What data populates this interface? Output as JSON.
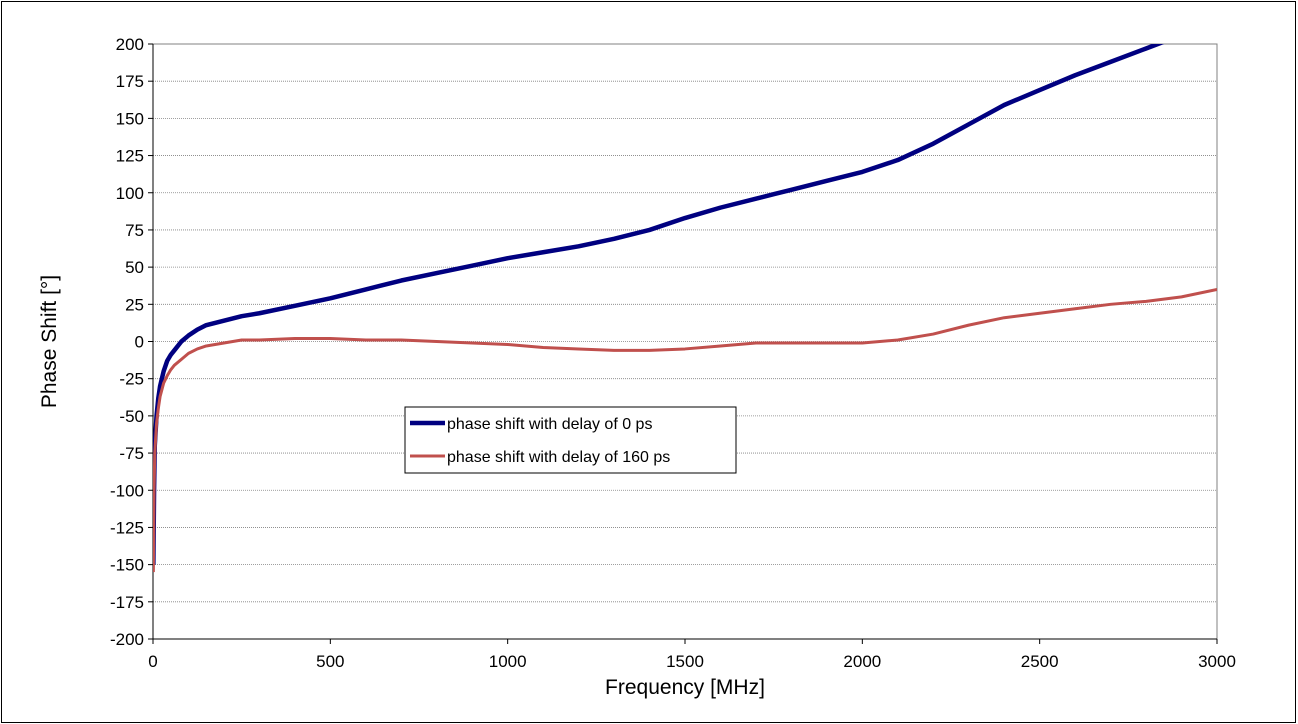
{
  "chart_data": {
    "type": "line",
    "xlabel": "Frequency [MHz]",
    "ylabel": "Phase Shift [°]",
    "xlim": [
      0,
      3000
    ],
    "ylim": [
      -200,
      200
    ],
    "xticks": [
      0,
      500,
      1000,
      1500,
      2000,
      2500,
      3000
    ],
    "yticks": [
      200,
      175,
      150,
      125,
      100,
      75,
      50,
      25,
      0,
      -25,
      -50,
      -75,
      -100,
      -125,
      -150,
      -175,
      -200
    ],
    "grid": "horizontal",
    "legend_position": "center-left",
    "series": [
      {
        "name": "phase shift with delay of 0 ps",
        "color": "#000080",
        "x": [
          1,
          3,
          5,
          10,
          15,
          20,
          30,
          40,
          50,
          60,
          80,
          100,
          125,
          150,
          200,
          250,
          300,
          400,
          500,
          600,
          700,
          800,
          900,
          1000,
          1100,
          1200,
          1300,
          1400,
          1500,
          1600,
          1700,
          1750,
          1800,
          1900,
          2000,
          2100,
          2200,
          2300,
          2400,
          2500,
          2600,
          2700,
          2800,
          2900,
          2950
        ],
        "y": [
          -150,
          -100,
          -70,
          -50,
          -38,
          -30,
          -20,
          -13,
          -9,
          -6,
          0,
          4,
          8,
          11,
          14,
          17,
          19,
          24,
          29,
          35,
          41,
          46,
          51,
          56,
          60,
          64,
          69,
          75,
          83,
          90,
          96,
          99,
          102,
          108,
          114,
          122,
          133,
          146,
          159,
          169,
          179,
          188,
          197,
          206,
          210
        ]
      },
      {
        "name": "phase shift with delay of 160 ps",
        "color": "#C0504D",
        "x": [
          1,
          3,
          5,
          10,
          15,
          20,
          30,
          40,
          50,
          60,
          80,
          100,
          125,
          150,
          200,
          250,
          300,
          400,
          500,
          600,
          700,
          800,
          900,
          1000,
          1100,
          1200,
          1300,
          1350,
          1400,
          1500,
          1600,
          1700,
          1750,
          1800,
          1900,
          2000,
          2100,
          2200,
          2300,
          2400,
          2500,
          2600,
          2700,
          2800,
          2900,
          3000
        ],
        "y": [
          -155,
          -100,
          -75,
          -55,
          -45,
          -37,
          -28,
          -23,
          -19,
          -16,
          -12,
          -8,
          -5,
          -3,
          -1,
          1,
          1,
          2,
          2,
          1,
          1,
          0,
          -1,
          -2,
          -4,
          -5,
          -6,
          -6,
          -6,
          -5,
          -3,
          -1,
          -1,
          -1,
          -1,
          -1,
          1,
          5,
          11,
          16,
          19,
          22,
          25,
          27,
          30,
          35
        ]
      }
    ]
  }
}
